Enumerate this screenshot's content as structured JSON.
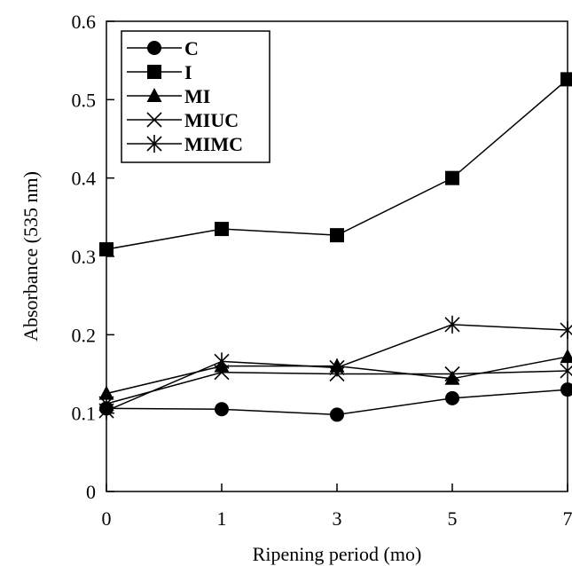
{
  "chart_data": {
    "type": "line",
    "xlabel": "Ripening period (mo)",
    "ylabel": "Absorbance (535 nm)",
    "categories": [
      "0",
      "1",
      "3",
      "5",
      "7"
    ],
    "ylim": [
      0,
      0.6
    ],
    "yticks": [
      "0",
      "0.1",
      "0.2",
      "0.3",
      "0.4",
      "0.5",
      "0.6"
    ],
    "grid": false,
    "legend_position": "top-left",
    "series": [
      {
        "name": "C",
        "marker": "circle",
        "values": [
          0.106,
          0.105,
          0.098,
          0.119,
          0.13
        ]
      },
      {
        "name": "I",
        "marker": "square",
        "values": [
          0.309,
          0.335,
          0.327,
          0.4,
          0.526
        ]
      },
      {
        "name": "MI",
        "marker": "triangle",
        "values": [
          0.125,
          0.16,
          0.16,
          0.144,
          0.172
        ]
      },
      {
        "name": "MIUC",
        "marker": "x",
        "values": [
          0.112,
          0.152,
          0.15,
          0.15,
          0.154
        ]
      },
      {
        "name": "MIMC",
        "marker": "star",
        "values": [
          0.103,
          0.166,
          0.158,
          0.213,
          0.206
        ]
      }
    ]
  }
}
